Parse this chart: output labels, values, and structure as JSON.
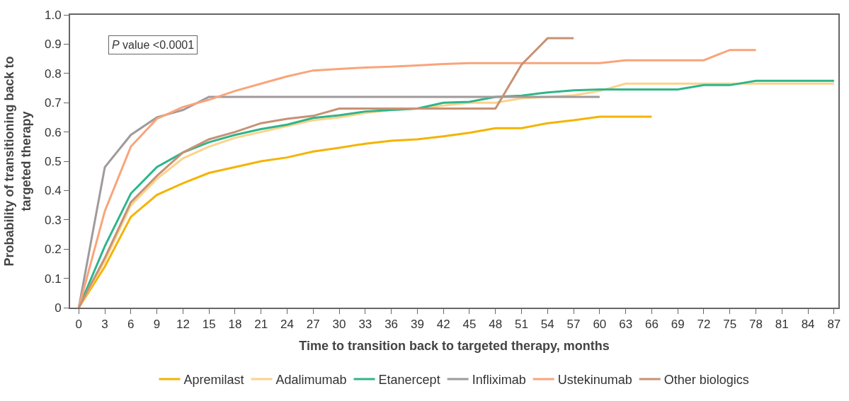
{
  "chart_data": {
    "type": "line",
    "xlabel": "Time to transition back to targeted therapy, months",
    "ylabel": "Probability of transitioning back to targeted therapy",
    "annotations": [
      "P value <0.0001"
    ],
    "xlim": [
      -1,
      87.5
    ],
    "xticks": [
      0,
      3,
      6,
      9,
      12,
      15,
      18,
      21,
      24,
      27,
      30,
      33,
      36,
      39,
      42,
      45,
      48,
      51,
      54,
      57,
      60,
      63,
      66,
      69,
      72,
      75,
      78,
      81,
      84,
      87
    ],
    "ylim": [
      0,
      1.0
    ],
    "yticks": [
      0,
      0.1,
      0.2,
      0.3,
      0.4,
      0.5,
      0.6,
      0.7,
      0.8,
      0.9,
      {
        "value": 1.0,
        "label": "1.0"
      }
    ],
    "legend": "bottom",
    "marker": "none",
    "line_style": "solid",
    "series": [
      {
        "name": "Apremilast",
        "color": "#f5b300",
        "x": [
          0,
          3,
          6,
          9,
          12,
          15,
          18,
          21,
          24,
          27,
          30,
          33,
          36,
          39,
          42,
          45,
          48,
          51,
          54,
          57,
          60,
          63,
          66
        ],
        "values": [
          0,
          0.14,
          0.31,
          0.385,
          0.425,
          0.46,
          0.48,
          0.5,
          0.513,
          0.533,
          0.546,
          0.56,
          0.57,
          0.575,
          0.585,
          0.597,
          0.613,
          0.613,
          0.63,
          0.64,
          0.652,
          0.652,
          0.652
        ]
      },
      {
        "name": "Adalimumab",
        "color": "#fdd28a",
        "x": [
          0,
          3,
          6,
          9,
          12,
          15,
          18,
          21,
          24,
          27,
          30,
          33,
          36,
          39,
          42,
          45,
          48,
          51,
          54,
          57,
          60,
          63,
          87
        ],
        "values": [
          0,
          0.16,
          0.35,
          0.44,
          0.51,
          0.55,
          0.58,
          0.6,
          0.62,
          0.64,
          0.65,
          0.665,
          0.675,
          0.68,
          0.69,
          0.7,
          0.7,
          0.715,
          0.72,
          0.725,
          0.74,
          0.765,
          0.765
        ]
      },
      {
        "name": "Etanercept",
        "color": "#2fb58a",
        "x": [
          0,
          3,
          6,
          9,
          12,
          15,
          18,
          21,
          24,
          27,
          30,
          33,
          36,
          39,
          42,
          45,
          48,
          51,
          54,
          57,
          60,
          69,
          72,
          75,
          78,
          87
        ],
        "values": [
          0,
          0.21,
          0.39,
          0.48,
          0.53,
          0.565,
          0.59,
          0.61,
          0.625,
          0.648,
          0.657,
          0.67,
          0.675,
          0.68,
          0.7,
          0.703,
          0.72,
          0.724,
          0.735,
          0.742,
          0.745,
          0.745,
          0.76,
          0.76,
          0.775,
          0.775
        ]
      },
      {
        "name": "Infliximab",
        "color": "#a09a9a",
        "x": [
          0,
          3,
          6,
          9,
          12,
          15,
          60
        ],
        "values": [
          0,
          0.48,
          0.59,
          0.65,
          0.675,
          0.72,
          0.72
        ]
      },
      {
        "name": "Ustekinumab",
        "color": "#f9a47a",
        "x": [
          0,
          3,
          6,
          9,
          12,
          15,
          18,
          21,
          24,
          27,
          30,
          33,
          36,
          39,
          42,
          45,
          60,
          63,
          72,
          75,
          78
        ],
        "values": [
          0,
          0.33,
          0.55,
          0.645,
          0.685,
          0.71,
          0.74,
          0.765,
          0.79,
          0.81,
          0.815,
          0.82,
          0.823,
          0.827,
          0.832,
          0.835,
          0.835,
          0.845,
          0.845,
          0.88,
          0.88
        ]
      },
      {
        "name": "Other biologics",
        "color": "#c79174",
        "x": [
          0,
          3,
          6,
          9,
          12,
          15,
          18,
          21,
          24,
          27,
          30,
          48,
          51,
          54,
          57
        ],
        "values": [
          0,
          0.17,
          0.36,
          0.45,
          0.53,
          0.575,
          0.6,
          0.63,
          0.645,
          0.655,
          0.68,
          0.68,
          0.83,
          0.92,
          0.92
        ]
      }
    ]
  }
}
